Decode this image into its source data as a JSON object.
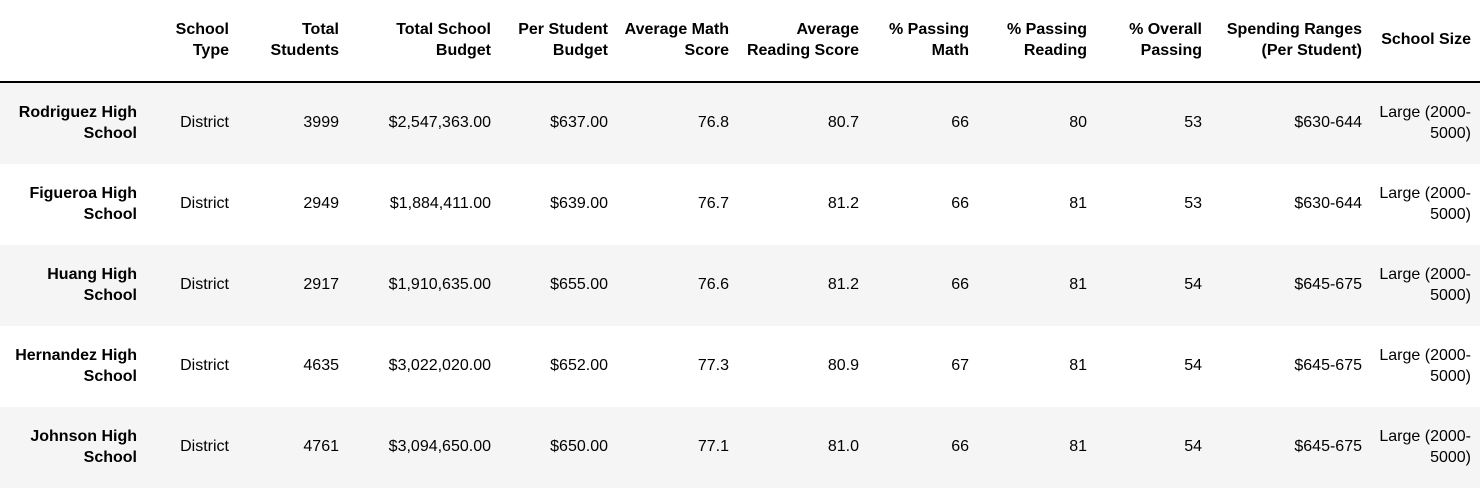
{
  "table": {
    "columns": [
      "",
      "School Type",
      "Total Students",
      "Total School Budget",
      "Per Student Budget",
      "Average Math Score",
      "Average Reading Score",
      "% Passing Math",
      "% Passing Reading",
      "% Overall Passing",
      "Spending Ranges (Per Student)",
      "School Size"
    ],
    "rows": [
      {
        "school": "Rodriguez High School",
        "type": "District",
        "total_students": "3999",
        "total_budget": "$2,547,363.00",
        "per_student_budget": "$637.00",
        "avg_math": "76.8",
        "avg_reading": "80.7",
        "pct_math": "66",
        "pct_reading": "80",
        "pct_overall": "53",
        "spending_range": "$630-644",
        "size": "Large (2000-5000)"
      },
      {
        "school": "Figueroa High School",
        "type": "District",
        "total_students": "2949",
        "total_budget": "$1,884,411.00",
        "per_student_budget": "$639.00",
        "avg_math": "76.7",
        "avg_reading": "81.2",
        "pct_math": "66",
        "pct_reading": "81",
        "pct_overall": "53",
        "spending_range": "$630-644",
        "size": "Large (2000-5000)"
      },
      {
        "school": "Huang High School",
        "type": "District",
        "total_students": "2917",
        "total_budget": "$1,910,635.00",
        "per_student_budget": "$655.00",
        "avg_math": "76.6",
        "avg_reading": "81.2",
        "pct_math": "66",
        "pct_reading": "81",
        "pct_overall": "54",
        "spending_range": "$645-675",
        "size": "Large (2000-5000)"
      },
      {
        "school": "Hernandez High School",
        "type": "District",
        "total_students": "4635",
        "total_budget": "$3,022,020.00",
        "per_student_budget": "$652.00",
        "avg_math": "77.3",
        "avg_reading": "80.9",
        "pct_math": "67",
        "pct_reading": "81",
        "pct_overall": "54",
        "spending_range": "$645-675",
        "size": "Large (2000-5000)"
      },
      {
        "school": "Johnson High School",
        "type": "District",
        "total_students": "4761",
        "total_budget": "$3,094,650.00",
        "per_student_budget": "$650.00",
        "avg_math": "77.1",
        "avg_reading": "81.0",
        "pct_math": "66",
        "pct_reading": "81",
        "pct_overall": "54",
        "spending_range": "$645-675",
        "size": "Large (2000-5000)"
      }
    ]
  }
}
